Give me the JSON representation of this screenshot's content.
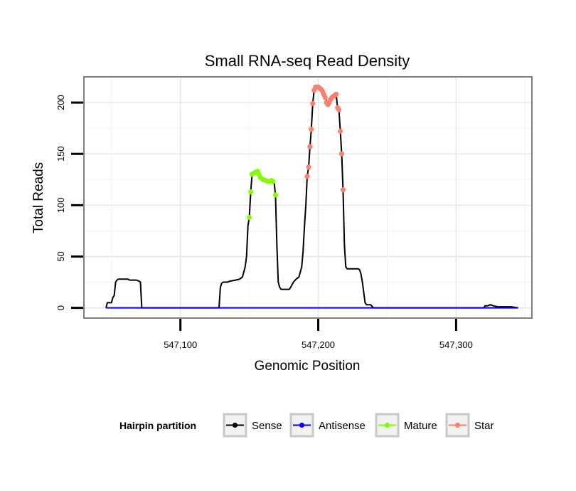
{
  "chart_data": {
    "type": "line",
    "title": "Small RNA-seq Read Density",
    "xlabel": "Genomic Position",
    "ylabel": "Total Reads",
    "xlim": [
      547030,
      547355
    ],
    "ylim": [
      -10,
      225
    ],
    "x_ticks": [
      547100,
      547200,
      547300
    ],
    "x_tick_labels": [
      "547,100",
      "547,200",
      "547,300"
    ],
    "y_ticks": [
      0,
      50,
      100,
      150,
      200
    ],
    "y_tick_labels": [
      "0",
      "50",
      "100",
      "150",
      "200"
    ],
    "grid": true,
    "legend": {
      "title": "Hairpin partition",
      "position": "bottom",
      "entries": [
        {
          "label": "Sense",
          "color": "#000000"
        },
        {
          "label": "Antisense",
          "color": "#0000ff"
        },
        {
          "label": "Mature",
          "color": "#7fff00"
        },
        {
          "label": "Star",
          "color": "#fa8072"
        }
      ]
    },
    "series": [
      {
        "name": "Sense",
        "color": "#000000",
        "points": [
          [
            547046,
            0
          ],
          [
            547047,
            5
          ],
          [
            547050,
            5
          ],
          [
            547051,
            10
          ],
          [
            547052,
            12
          ],
          [
            547053,
            25
          ],
          [
            547054,
            27
          ],
          [
            547055,
            28
          ],
          [
            547062,
            28
          ],
          [
            547063,
            27
          ],
          [
            547068,
            27
          ],
          [
            547070,
            26
          ],
          [
            547071,
            25
          ],
          [
            547072,
            0
          ],
          [
            547128,
            0
          ],
          [
            547129,
            20
          ],
          [
            547130,
            24
          ],
          [
            547131,
            25
          ],
          [
            547134,
            25
          ],
          [
            547136,
            26
          ],
          [
            547140,
            27
          ],
          [
            547143,
            28
          ],
          [
            547145,
            30
          ],
          [
            547146,
            35
          ],
          [
            547147,
            40
          ],
          [
            547148,
            50
          ],
          [
            547149,
            80
          ],
          [
            547150,
            88
          ],
          [
            547151,
            113
          ],
          [
            547152,
            130
          ],
          [
            547153,
            131
          ],
          [
            547155,
            133
          ],
          [
            547157,
            133
          ],
          [
            547158,
            127
          ],
          [
            547161,
            125
          ],
          [
            547163,
            123
          ],
          [
            547165,
            122
          ],
          [
            547166,
            123
          ],
          [
            547167,
            124
          ],
          [
            547168,
            122
          ],
          [
            547169,
            110
          ],
          [
            547170,
            60
          ],
          [
            547171,
            25
          ],
          [
            547172,
            20
          ],
          [
            547173,
            18
          ],
          [
            547179,
            18
          ],
          [
            547180,
            20
          ],
          [
            547182,
            25
          ],
          [
            547184,
            28
          ],
          [
            547186,
            30
          ],
          [
            547188,
            40
          ],
          [
            547189,
            55
          ],
          [
            547190,
            80
          ],
          [
            547191,
            100
          ],
          [
            547192,
            128
          ],
          [
            547193,
            137
          ],
          [
            547194,
            157
          ],
          [
            547195,
            174
          ],
          [
            547196,
            199
          ],
          [
            547197,
            212
          ],
          [
            547198,
            215
          ],
          [
            547200,
            215
          ],
          [
            547202,
            214
          ],
          [
            547203,
            212
          ],
          [
            547204,
            210
          ],
          [
            547205,
            205
          ],
          [
            547206,
            202
          ],
          [
            547207,
            198
          ],
          [
            547208,
            198
          ],
          [
            547209,
            202
          ],
          [
            547210,
            205
          ],
          [
            547212,
            207
          ],
          [
            547213,
            208
          ],
          [
            547214,
            195
          ],
          [
            547215,
            193
          ],
          [
            547216,
            172
          ],
          [
            547217,
            150
          ],
          [
            547218,
            115
          ],
          [
            547219,
            60
          ],
          [
            547220,
            40
          ],
          [
            547221,
            38
          ],
          [
            547229,
            38
          ],
          [
            547230,
            37
          ],
          [
            547231,
            33
          ],
          [
            547232,
            25
          ],
          [
            547233,
            15
          ],
          [
            547234,
            5
          ],
          [
            547235,
            3
          ],
          [
            547238,
            3
          ],
          [
            547240,
            0
          ],
          [
            547320,
            0
          ],
          [
            547321,
            2
          ],
          [
            547323,
            2
          ],
          [
            547325,
            3
          ],
          [
            547327,
            2
          ],
          [
            547330,
            1
          ],
          [
            547340,
            1
          ],
          [
            547345,
            0
          ]
        ]
      },
      {
        "name": "Antisense",
        "color": "#0000ff",
        "points": [
          [
            547046,
            0
          ],
          [
            547345,
            0
          ]
        ]
      },
      {
        "name": "Mature",
        "color": "#7fff00",
        "points": [
          [
            547150,
            88
          ],
          [
            547151,
            113
          ],
          [
            547152,
            130
          ],
          [
            547154,
            132
          ],
          [
            547156,
            133
          ],
          [
            547157,
            130
          ],
          [
            547158,
            127
          ],
          [
            547160,
            125
          ],
          [
            547162,
            124
          ],
          [
            547164,
            123
          ],
          [
            547166,
            124
          ],
          [
            547167,
            123
          ],
          [
            547169,
            110
          ]
        ]
      },
      {
        "name": "Star",
        "color": "#fa8072",
        "points": [
          [
            547192,
            128
          ],
          [
            547193,
            137
          ],
          [
            547194,
            157
          ],
          [
            547195,
            174
          ],
          [
            547196,
            199
          ],
          [
            547197,
            212
          ],
          [
            547198,
            215
          ],
          [
            547199,
            215
          ],
          [
            547200,
            215
          ],
          [
            547201,
            214
          ],
          [
            547202,
            213
          ],
          [
            547203,
            211
          ],
          [
            547204,
            208
          ],
          [
            547205,
            205
          ],
          [
            547206,
            200
          ],
          [
            547207,
            198
          ],
          [
            547208,
            200
          ],
          [
            547209,
            203
          ],
          [
            547210,
            205
          ],
          [
            547211,
            206
          ],
          [
            547212,
            207
          ],
          [
            547213,
            208
          ],
          [
            547214,
            195
          ],
          [
            547215,
            193
          ],
          [
            547216,
            172
          ],
          [
            547217,
            150
          ],
          [
            547218,
            115
          ]
        ]
      }
    ]
  }
}
